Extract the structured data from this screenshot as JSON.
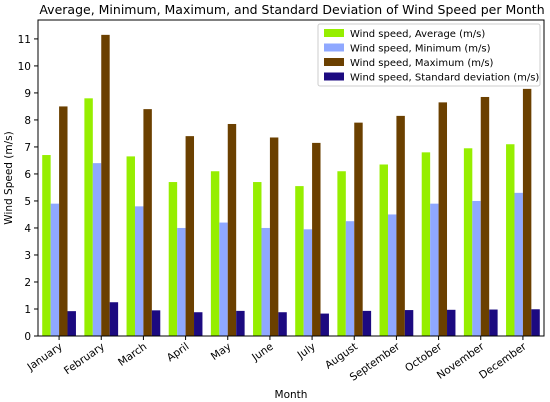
{
  "chart_data": {
    "type": "bar",
    "title": "Average, Minimum, Maximum, and Standard Deviation of Wind Speed per Month",
    "xlabel": "Month",
    "ylabel": "Wind Speed (m/s)",
    "ylim": [
      0,
      11.7
    ],
    "yticks": [
      0,
      1,
      2,
      3,
      4,
      5,
      6,
      7,
      8,
      9,
      10,
      11
    ],
    "grid": false,
    "legend_position": "top-right",
    "categories": [
      "January",
      "February",
      "March",
      "April",
      "May",
      "June",
      "July",
      "August",
      "September",
      "October",
      "November",
      "December"
    ],
    "series": [
      {
        "name": "Wind speed, Average (m/s)",
        "color": "#96ee00",
        "values": [
          6.7,
          8.8,
          6.65,
          5.7,
          6.1,
          5.7,
          5.55,
          6.1,
          6.35,
          6.8,
          6.95,
          7.1
        ]
      },
      {
        "name": "Wind speed, Minimum (m/s)",
        "color": "#8fa8ff",
        "values": [
          4.9,
          6.4,
          4.8,
          4.0,
          4.2,
          4.0,
          3.95,
          4.25,
          4.5,
          4.9,
          5.0,
          5.3
        ]
      },
      {
        "name": "Wind speed, Maximum (m/s)",
        "color": "#6b4000",
        "values": [
          8.5,
          11.15,
          8.4,
          7.4,
          7.85,
          7.35,
          7.15,
          7.9,
          8.15,
          8.65,
          8.85,
          9.15
        ]
      },
      {
        "name": "Wind speed, Standard deviation (m/s)",
        "color": "#1c0a80",
        "values": [
          0.92,
          1.25,
          0.95,
          0.88,
          0.93,
          0.88,
          0.83,
          0.93,
          0.96,
          0.97,
          0.98,
          0.99
        ]
      }
    ]
  }
}
